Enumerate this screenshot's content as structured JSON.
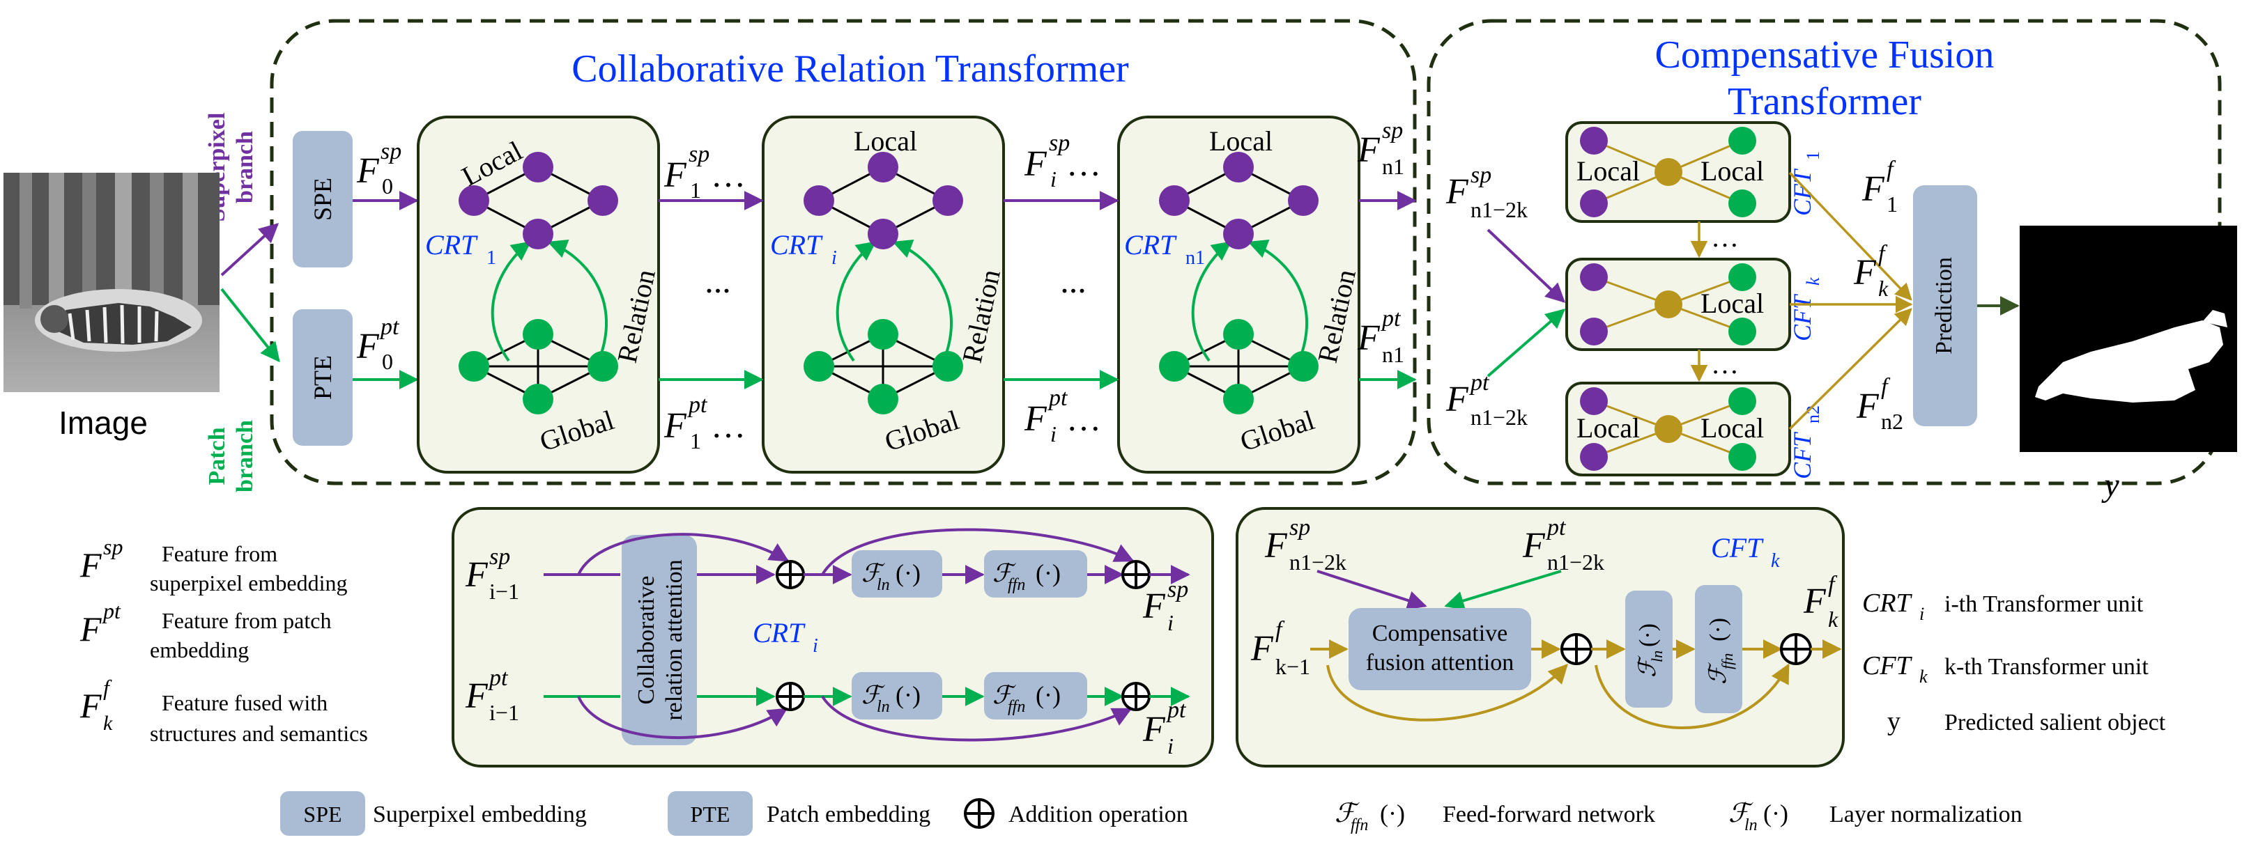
{
  "titles": {
    "crt": "Collaborative Relation Transformer",
    "cft_line1": "Compensative Fusion",
    "cft_line2": "Transformer"
  },
  "branches": {
    "superpixel_line1": "Superpixel",
    "superpixel_line2": "branch",
    "patch_line1": "Patch",
    "patch_line2": "branch"
  },
  "input": {
    "label": "Image"
  },
  "output": {
    "label": "y"
  },
  "modules": {
    "spe": "SPE",
    "pte": "PTE",
    "prediction": "Prediction",
    "collab_attention_line1": "Collaborative",
    "collab_attention_line2": "relation attention",
    "comp_attention_line1": "Compensative",
    "comp_attention_line2": "fusion  attention",
    "f_ln": "ℱ",
    "f_ln_sub": "ln",
    "f_ffn": "ℱ",
    "f_ffn_sub": "ffn",
    "paren": "(·)"
  },
  "graph_labels": {
    "local": "Local",
    "global": "Global",
    "relation": "Relation",
    "ellipsis": "..."
  },
  "features": {
    "F": "F",
    "sup_sp": "sp",
    "sup_pt": "pt",
    "sup_f": "f",
    "sub_0": "0",
    "sub_1": "1",
    "sub_i": "i",
    "sub_n1": "n1",
    "sub_n1m2k": "n1−2k",
    "sub_k": "k",
    "sub_n2": "n2",
    "sub_im1": "i−1",
    "sub_km1": "k−1",
    "dots": "…"
  },
  "units": {
    "CRT": "CRT",
    "CFT": "CFT",
    "sub_1": "1",
    "sub_i": "i",
    "sub_n1": "n1",
    "sub_k": "k",
    "sub_n2": "n2"
  },
  "legend_left": {
    "sp_line1": "Feature from",
    "sp_line2": "superpixel embedding",
    "pt_line1": "Feature from patch",
    "pt_line2": "embedding",
    "f_line1": "Feature fused with",
    "f_line2": "structures and semantics"
  },
  "legend_right": {
    "crt_desc": "i-th Transformer unit",
    "cft_desc": "k-th Transformer unit",
    "y_symbol": "y",
    "y_desc": "Predicted salient object"
  },
  "legend_bottom": {
    "spe_box": "SPE",
    "spe_desc": "Superpixel embedding",
    "pte_box": "PTE",
    "pte_desc": "Patch embedding",
    "add_desc": "Addition operation",
    "ffn_desc": "Feed-forward network",
    "ln_desc": "Layer normalization"
  },
  "colors": {
    "superpixel": "#7030a0",
    "patch": "#00b050",
    "title_blue": "#0033ff",
    "fusion": "#b8961e",
    "module_fill": "#a9bcd4",
    "panel_fill": "#f3f5e9",
    "border": "#1f2f10"
  }
}
